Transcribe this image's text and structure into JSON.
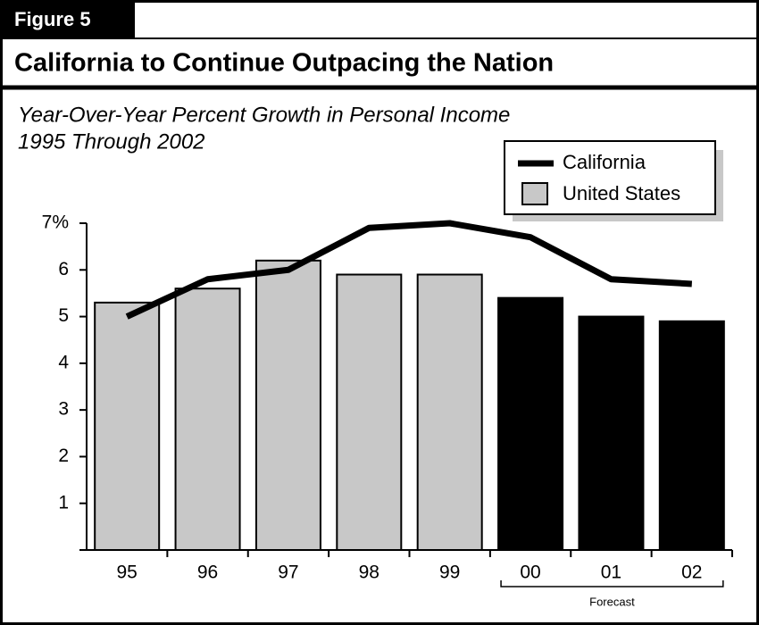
{
  "figure_label": "Figure 5",
  "chart_data": {
    "type": "bar_line",
    "title": "California to Continue Outpacing the Nation",
    "subtitle": [
      "Year-Over-Year Percent Growth in Personal Income",
      "1995 Through 2002"
    ],
    "categories": [
      "95",
      "96",
      "97",
      "98",
      "99",
      "00",
      "01",
      "02"
    ],
    "series": [
      {
        "name": "California",
        "type": "line",
        "color": "#000000",
        "values": [
          5.0,
          5.8,
          6.0,
          6.9,
          7.0,
          6.7,
          5.8,
          5.7
        ]
      },
      {
        "name": "United States",
        "type": "bar",
        "color": "#c8c8c8",
        "bar_colors": [
          "#c8c8c8",
          "#c8c8c8",
          "#c8c8c8",
          "#c8c8c8",
          "#c8c8c8",
          "#000000",
          "#000000",
          "#000000"
        ],
        "values": [
          5.3,
          5.6,
          6.2,
          5.9,
          5.9,
          5.4,
          5.0,
          4.9
        ]
      }
    ],
    "ylim": [
      0,
      7
    ],
    "yticks": [
      1,
      2,
      3,
      4,
      5,
      6,
      {
        "value": 7,
        "label": "7%"
      }
    ],
    "annotation": {
      "text": "Forecast",
      "from_category": 5,
      "to_category": 7
    },
    "legend": "top-right"
  }
}
